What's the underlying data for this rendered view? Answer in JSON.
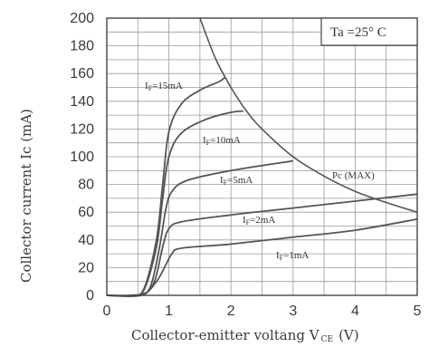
{
  "chart_data": {
    "type": "line",
    "xlabel": "Collector-emitter voltang V",
    "xlabel_sub": "CE",
    "xlabel_unit": "(V)",
    "ylabel": "Collector current Ic (mA)",
    "xlim": [
      0,
      5
    ],
    "ylim": [
      0,
      200
    ],
    "xticks": [
      "0",
      "1",
      "2",
      "3",
      "4",
      "5"
    ],
    "yticks": [
      "0",
      "20",
      "40",
      "60",
      "80",
      "100",
      "120",
      "140",
      "160",
      "180",
      "200"
    ],
    "grid": true,
    "legend_box": "Ta =25° C",
    "series": [
      {
        "name": "IF=15mA",
        "label_main": "I",
        "label_sub": "F",
        "label_rest": "=15mA",
        "x": [
          0,
          0.4,
          0.6,
          0.8,
          0.9,
          1.0,
          1.2,
          1.5,
          1.8,
          1.9
        ],
        "y": [
          0,
          0,
          5,
          40,
          80,
          118,
          138,
          148,
          154,
          157
        ]
      },
      {
        "name": "IF=10mA",
        "label_main": "I",
        "label_sub": "F",
        "label_rest": "=10mA",
        "x": [
          0,
          0.4,
          0.6,
          0.8,
          0.9,
          1.0,
          1.2,
          1.6,
          2.0,
          2.2
        ],
        "y": [
          0,
          0,
          4,
          35,
          70,
          100,
          117,
          127,
          132,
          133
        ]
      },
      {
        "name": "IF=5mA",
        "label_main": "I",
        "label_sub": "F",
        "label_rest": "=5mA",
        "x": [
          0,
          0.5,
          0.7,
          0.85,
          0.95,
          1.05,
          1.3,
          2.0,
          3.0
        ],
        "y": [
          0,
          0,
          6,
          35,
          62,
          75,
          83,
          90,
          97
        ]
      },
      {
        "name": "IF=2mA",
        "label_main": "I",
        "label_sub": "F",
        "label_rest": "=2mA",
        "x": [
          0,
          0.5,
          0.75,
          0.9,
          1.0,
          1.2,
          2.0,
          3.0,
          4.0,
          5.0
        ],
        "y": [
          0,
          0,
          8,
          35,
          48,
          53,
          58,
          63,
          68,
          73
        ]
      },
      {
        "name": "IF=1mA",
        "label_main": "I",
        "label_sub": "F",
        "label_rest": "=1mA",
        "x": [
          0,
          0.55,
          0.8,
          0.95,
          1.05,
          1.2,
          2.0,
          3.0,
          4.0,
          5.0
        ],
        "y": [
          0,
          0,
          10,
          22,
          30,
          34,
          37,
          42,
          47,
          55
        ]
      }
    ],
    "pc_curve": {
      "name": "Pc (MAX)",
      "x": [
        1.5,
        1.75,
        2.0,
        2.25,
        2.5,
        3.0,
        3.5,
        4.0,
        4.5,
        5.0
      ],
      "y": [
        200,
        171,
        150,
        133,
        120,
        100,
        86,
        75,
        67,
        60
      ]
    }
  }
}
